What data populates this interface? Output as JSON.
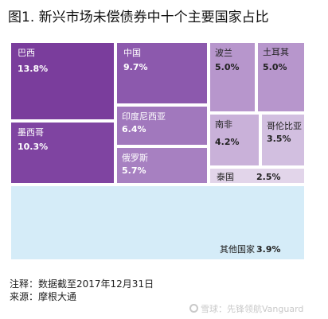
{
  "chart_data": {
    "type": "treemap",
    "title": "图1. 新兴市场未偿债券中十个主要国家占比",
    "items": [
      {
        "name": "巴西",
        "value": 13.8,
        "label": "13.8%",
        "color": "#7a3d9c"
      },
      {
        "name": "墨西哥",
        "value": 10.3,
        "label": "10.3%",
        "color": "#7f44a1"
      },
      {
        "name": "中国",
        "value": 9.7,
        "label": "9.7%",
        "color": "#8c59ad"
      },
      {
        "name": "印度尼西亚",
        "value": 6.4,
        "label": "6.4%",
        "color": "#a178bd"
      },
      {
        "name": "俄罗斯",
        "value": 5.7,
        "label": "5.7%",
        "color": "#a780c1"
      },
      {
        "name": "波兰",
        "value": 5.0,
        "label": "5.0%",
        "color": "#b796cc"
      },
      {
        "name": "土耳其",
        "value": 5.0,
        "label": "5.0%",
        "color": "#b796cc"
      },
      {
        "name": "南非",
        "value": 4.2,
        "label": "4.2%",
        "color": "#c9b1d9"
      },
      {
        "name": "哥伦比亚",
        "value": 3.5,
        "label": "3.5%",
        "color": "#d2bfe0"
      },
      {
        "name": "泰国",
        "value": 2.5,
        "label": "2.5%",
        "color": "#e2d5ea"
      },
      {
        "name": "其他国家",
        "value": 3.9,
        "label": "3.9%",
        "color": "#d5ecf8"
      }
    ]
  },
  "footer": {
    "note": "注释：数据截至2017年12月31日",
    "source": "来源：摩根大通"
  },
  "watermark": "雪球：先锋领航Vanguard"
}
